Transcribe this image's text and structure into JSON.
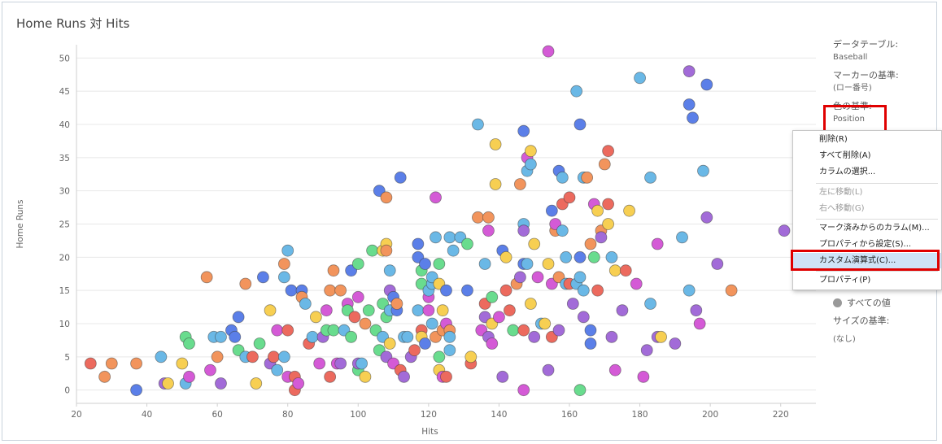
{
  "title": "Home Runs 対 Hits",
  "chart_data": {
    "type": "scatter",
    "title": "Home Runs 対 Hits",
    "xlabel": "Hits",
    "ylabel": "Home Runs",
    "xlim": [
      20,
      230
    ],
    "ylim": [
      -2,
      52
    ],
    "xticks": [
      20,
      40,
      60,
      80,
      100,
      120,
      140,
      160,
      180,
      200,
      220
    ],
    "yticks": [
      0,
      5,
      10,
      15,
      20,
      25,
      30,
      35,
      40,
      45,
      50
    ],
    "grid": "horizontal",
    "colors": {
      "blue": "#5b7fe8",
      "lightblue": "#6ab8e6",
      "orange": "#f2945c",
      "red": "#ec6a5e",
      "yellow": "#f7cf52",
      "green": "#69dc8e",
      "magenta": "#d45ad6",
      "purple": "#a26bd8"
    },
    "points": [
      [
        24,
        4,
        "red"
      ],
      [
        28,
        2,
        "orange"
      ],
      [
        30,
        4,
        "orange"
      ],
      [
        37,
        4,
        "orange"
      ],
      [
        37,
        0,
        "blue"
      ],
      [
        44,
        5,
        "lightblue"
      ],
      [
        45,
        1,
        "purple"
      ],
      [
        46,
        1,
        "yellow"
      ],
      [
        50,
        4,
        "yellow"
      ],
      [
        51,
        8,
        "green"
      ],
      [
        51,
        1,
        "lightblue"
      ],
      [
        52,
        7,
        "green"
      ],
      [
        52,
        2,
        "magenta"
      ],
      [
        57,
        17,
        "orange"
      ],
      [
        58,
        3,
        "magenta"
      ],
      [
        59,
        8,
        "lightblue"
      ],
      [
        60,
        5,
        "orange"
      ],
      [
        61,
        8,
        "lightblue"
      ],
      [
        61,
        1,
        "purple"
      ],
      [
        64,
        9,
        "blue"
      ],
      [
        65,
        8,
        "blue"
      ],
      [
        66,
        11,
        "blue"
      ],
      [
        66,
        6,
        "green"
      ],
      [
        68,
        16,
        "orange"
      ],
      [
        68,
        5,
        "lightblue"
      ],
      [
        70,
        5,
        "red"
      ],
      [
        71,
        1,
        "yellow"
      ],
      [
        72,
        7,
        "green"
      ],
      [
        73,
        17,
        "blue"
      ],
      [
        75,
        4,
        "purple"
      ],
      [
        75,
        12,
        "yellow"
      ],
      [
        76,
        5,
        "red"
      ],
      [
        77,
        9,
        "magenta"
      ],
      [
        77,
        3,
        "lightblue"
      ],
      [
        79,
        17,
        "lightblue"
      ],
      [
        79,
        19,
        "orange"
      ],
      [
        79,
        5,
        "lightblue"
      ],
      [
        80,
        21,
        "lightblue"
      ],
      [
        80,
        9,
        "red"
      ],
      [
        80,
        2,
        "magenta"
      ],
      [
        81,
        15,
        "blue"
      ],
      [
        82,
        0,
        "red"
      ],
      [
        82,
        2,
        "red"
      ],
      [
        83,
        1,
        "magenta"
      ],
      [
        84,
        15,
        "blue"
      ],
      [
        84,
        14,
        "orange"
      ],
      [
        85,
        13,
        "lightblue"
      ],
      [
        86,
        7,
        "red"
      ],
      [
        87,
        8,
        "lightblue"
      ],
      [
        88,
        11,
        "yellow"
      ],
      [
        89,
        4,
        "magenta"
      ],
      [
        90,
        8,
        "purple"
      ],
      [
        91,
        12,
        "magenta"
      ],
      [
        91,
        9,
        "green"
      ],
      [
        92,
        15,
        "orange"
      ],
      [
        92,
        2,
        "red"
      ],
      [
        93,
        18,
        "orange"
      ],
      [
        93,
        9,
        "green"
      ],
      [
        94,
        4,
        "magenta"
      ],
      [
        95,
        15,
        "orange"
      ],
      [
        95,
        4,
        "purple"
      ],
      [
        96,
        9,
        "lightblue"
      ],
      [
        97,
        13,
        "magenta"
      ],
      [
        97,
        12,
        "green"
      ],
      [
        98,
        18,
        "blue"
      ],
      [
        98,
        8,
        "green"
      ],
      [
        99,
        11,
        "red"
      ],
      [
        100,
        19,
        "green"
      ],
      [
        100,
        14,
        "magenta"
      ],
      [
        100,
        3,
        "green"
      ],
      [
        100,
        4,
        "purple"
      ],
      [
        101,
        4,
        "lightblue"
      ],
      [
        102,
        2,
        "yellow"
      ],
      [
        102,
        10,
        "orange"
      ],
      [
        103,
        12,
        "green"
      ],
      [
        104,
        21,
        "green"
      ],
      [
        105,
        9,
        "green"
      ],
      [
        106,
        30,
        "blue"
      ],
      [
        106,
        6,
        "green"
      ],
      [
        107,
        13,
        "green"
      ],
      [
        107,
        21,
        "yellow"
      ],
      [
        107,
        8,
        "lightblue"
      ],
      [
        108,
        22,
        "yellow"
      ],
      [
        108,
        29,
        "orange"
      ],
      [
        108,
        21,
        "orange"
      ],
      [
        108,
        11,
        "green"
      ],
      [
        108,
        5,
        "purple"
      ],
      [
        109,
        15,
        "purple"
      ],
      [
        109,
        7,
        "yellow"
      ],
      [
        109,
        12,
        "lightblue"
      ],
      [
        109,
        18,
        "lightblue"
      ],
      [
        110,
        14,
        "blue"
      ],
      [
        110,
        4,
        "magenta"
      ],
      [
        111,
        12,
        "blue"
      ],
      [
        111,
        13,
        "orange"
      ],
      [
        112,
        32,
        "blue"
      ],
      [
        112,
        3,
        "red"
      ],
      [
        113,
        8,
        "lightblue"
      ],
      [
        113,
        2,
        "purple"
      ],
      [
        114,
        8,
        "lightblue"
      ],
      [
        115,
        5,
        "purple"
      ],
      [
        116,
        6,
        "red"
      ],
      [
        117,
        22,
        "blue"
      ],
      [
        117,
        20,
        "blue"
      ],
      [
        117,
        12,
        "lightblue"
      ],
      [
        118,
        18,
        "green"
      ],
      [
        118,
        16,
        "green"
      ],
      [
        118,
        9,
        "red"
      ],
      [
        118,
        8,
        "yellow"
      ],
      [
        119,
        19,
        "blue"
      ],
      [
        119,
        7,
        "blue"
      ],
      [
        120,
        14,
        "magenta"
      ],
      [
        120,
        12,
        "magenta"
      ],
      [
        120,
        15,
        "lightblue"
      ],
      [
        121,
        16,
        "lightblue"
      ],
      [
        121,
        17,
        "lightblue"
      ],
      [
        121,
        10,
        "lightblue"
      ],
      [
        122,
        29,
        "magenta"
      ],
      [
        122,
        23,
        "lightblue"
      ],
      [
        122,
        8,
        "orange"
      ],
      [
        123,
        19,
        "green"
      ],
      [
        123,
        16,
        "yellow"
      ],
      [
        123,
        5,
        "green"
      ],
      [
        123,
        3,
        "yellow"
      ],
      [
        124,
        2,
        "magenta"
      ],
      [
        124,
        12,
        "yellow"
      ],
      [
        124,
        9,
        "orange"
      ],
      [
        125,
        15,
        "blue"
      ],
      [
        125,
        10,
        "magenta"
      ],
      [
        125,
        2,
        "red"
      ],
      [
        126,
        23,
        "lightblue"
      ],
      [
        126,
        9,
        "orange"
      ],
      [
        126,
        6,
        "lightblue"
      ],
      [
        126,
        8,
        "lightblue"
      ],
      [
        127,
        21,
        "lightblue"
      ],
      [
        129,
        23,
        "lightblue"
      ],
      [
        131,
        15,
        "blue"
      ],
      [
        131,
        22,
        "green"
      ],
      [
        132,
        4,
        "red"
      ],
      [
        132,
        5,
        "yellow"
      ],
      [
        134,
        40,
        "lightblue"
      ],
      [
        134,
        26,
        "orange"
      ],
      [
        135,
        9,
        "magenta"
      ],
      [
        136,
        13,
        "red"
      ],
      [
        136,
        11,
        "purple"
      ],
      [
        136,
        19,
        "lightblue"
      ],
      [
        137,
        24,
        "magenta"
      ],
      [
        137,
        26,
        "orange"
      ],
      [
        137,
        8,
        "purple"
      ],
      [
        138,
        14,
        "green"
      ],
      [
        138,
        10,
        "yellow"
      ],
      [
        138,
        7,
        "magenta"
      ],
      [
        139,
        37,
        "yellow"
      ],
      [
        139,
        31,
        "yellow"
      ],
      [
        140,
        11,
        "magenta"
      ],
      [
        141,
        21,
        "blue"
      ],
      [
        141,
        2,
        "purple"
      ],
      [
        142,
        15,
        "red"
      ],
      [
        142,
        20,
        "yellow"
      ],
      [
        143,
        12,
        "red"
      ],
      [
        144,
        9,
        "green"
      ],
      [
        145,
        16,
        "orange"
      ],
      [
        146,
        31,
        "orange"
      ],
      [
        146,
        17,
        "purple"
      ],
      [
        147,
        39,
        "blue"
      ],
      [
        147,
        25,
        "lightblue"
      ],
      [
        147,
        24,
        "purple"
      ],
      [
        147,
        19,
        "blue"
      ],
      [
        147,
        9,
        "red"
      ],
      [
        147,
        0,
        "magenta"
      ],
      [
        148,
        35,
        "magenta"
      ],
      [
        148,
        33,
        "lightblue"
      ],
      [
        148,
        19,
        "lightblue"
      ],
      [
        149,
        36,
        "yellow"
      ],
      [
        149,
        34,
        "lightblue"
      ],
      [
        149,
        13,
        "yellow"
      ],
      [
        150,
        22,
        "yellow"
      ],
      [
        150,
        8,
        "purple"
      ],
      [
        151,
        17,
        "magenta"
      ],
      [
        152,
        10,
        "lightblue"
      ],
      [
        153,
        10,
        "yellow"
      ],
      [
        154,
        51,
        "magenta"
      ],
      [
        154,
        19,
        "yellow"
      ],
      [
        154,
        3,
        "purple"
      ],
      [
        155,
        27,
        "blue"
      ],
      [
        155,
        16,
        "magenta"
      ],
      [
        155,
        8,
        "red"
      ],
      [
        156,
        24,
        "orange"
      ],
      [
        156,
        25,
        "magenta"
      ],
      [
        157,
        33,
        "blue"
      ],
      [
        157,
        17,
        "orange"
      ],
      [
        157,
        9,
        "purple"
      ],
      [
        158,
        32,
        "lightblue"
      ],
      [
        158,
        28,
        "red"
      ],
      [
        158,
        24,
        "lightblue"
      ],
      [
        159,
        20,
        "lightblue"
      ],
      [
        159,
        16,
        "lightblue"
      ],
      [
        160,
        29,
        "red"
      ],
      [
        160,
        16,
        "red"
      ],
      [
        161,
        13,
        "purple"
      ],
      [
        162,
        45,
        "lightblue"
      ],
      [
        162,
        16,
        "lightblue"
      ],
      [
        163,
        40,
        "blue"
      ],
      [
        163,
        20,
        "blue"
      ],
      [
        163,
        17,
        "lightblue"
      ],
      [
        163,
        0,
        "green"
      ],
      [
        164,
        15,
        "lightblue"
      ],
      [
        164,
        11,
        "purple"
      ],
      [
        164,
        32,
        "lightblue"
      ],
      [
        165,
        32,
        "orange"
      ],
      [
        166,
        9,
        "blue"
      ],
      [
        166,
        7,
        "blue"
      ],
      [
        166,
        22,
        "orange"
      ],
      [
        167,
        28,
        "magenta"
      ],
      [
        167,
        20,
        "green"
      ],
      [
        168,
        15,
        "red"
      ],
      [
        168,
        27,
        "yellow"
      ],
      [
        169,
        24,
        "orange"
      ],
      [
        169,
        23,
        "purple"
      ],
      [
        170,
        34,
        "orange"
      ],
      [
        171,
        36,
        "red"
      ],
      [
        171,
        28,
        "red"
      ],
      [
        171,
        25,
        "yellow"
      ],
      [
        172,
        20,
        "lightblue"
      ],
      [
        172,
        8,
        "purple"
      ],
      [
        173,
        18,
        "yellow"
      ],
      [
        173,
        3,
        "magenta"
      ],
      [
        175,
        12,
        "purple"
      ],
      [
        176,
        18,
        "red"
      ],
      [
        177,
        27,
        "yellow"
      ],
      [
        179,
        16,
        "magenta"
      ],
      [
        180,
        47,
        "lightblue"
      ],
      [
        181,
        2,
        "magenta"
      ],
      [
        182,
        6,
        "purple"
      ],
      [
        183,
        13,
        "lightblue"
      ],
      [
        183,
        32,
        "lightblue"
      ],
      [
        185,
        22,
        "magenta"
      ],
      [
        185,
        8,
        "purple"
      ],
      [
        186,
        8,
        "yellow"
      ],
      [
        190,
        7,
        "purple"
      ],
      [
        192,
        23,
        "lightblue"
      ],
      [
        194,
        48,
        "purple"
      ],
      [
        194,
        43,
        "blue"
      ],
      [
        194,
        15,
        "lightblue"
      ],
      [
        195,
        41,
        "blue"
      ],
      [
        196,
        12,
        "purple"
      ],
      [
        197,
        10,
        "magenta"
      ],
      [
        198,
        33,
        "lightblue"
      ],
      [
        199,
        46,
        "blue"
      ],
      [
        199,
        26,
        "purple"
      ],
      [
        202,
        19,
        "purple"
      ],
      [
        206,
        15,
        "orange"
      ],
      [
        221,
        24,
        "purple"
      ]
    ]
  },
  "legend": {
    "datatable_label": "データテーブル:",
    "datatable_value": "Baseball",
    "marker_label": "マーカーの基準:",
    "marker_value": "(ロー番号)",
    "color_label": "色の基準:",
    "color_value": "Position",
    "all_values": "すべての値",
    "size_label": "サイズの基準:",
    "size_value": "(なし)"
  },
  "context_menu": {
    "items": [
      {
        "label": "削除(R)",
        "disabled": false
      },
      {
        "label": "すべて削除(A)",
        "disabled": false
      },
      {
        "label": "カラムの選択...",
        "disabled": false
      },
      {
        "label": "左に移動(L)",
        "disabled": true
      },
      {
        "label": "右へ移動(G)",
        "disabled": true
      },
      {
        "label": "マーク済みからのカラム(M)...",
        "disabled": false
      },
      {
        "label": "プロパティから設定(S)...",
        "disabled": false
      },
      {
        "label": "カスタム演算式(C)...",
        "disabled": false,
        "highlighted": true
      },
      {
        "label": "プロパティ(P)",
        "disabled": false
      }
    ]
  }
}
